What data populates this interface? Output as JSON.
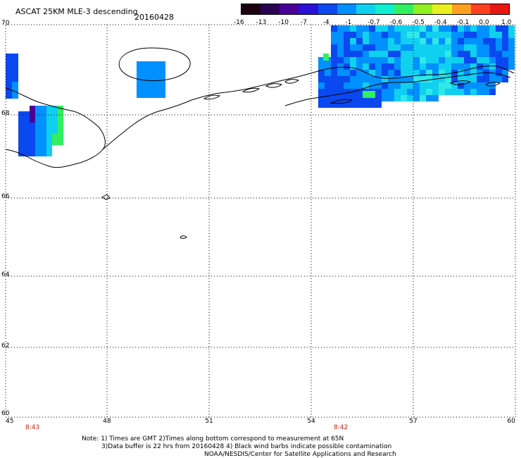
{
  "header": {
    "title": "ASCAT 25KM MLE-3 descending",
    "date": "20160428"
  },
  "colorbar": {
    "labels": [
      "-16",
      "-13",
      "-10",
      "-7",
      "-4",
      "-1",
      "-0.7",
      "-0.6",
      "-0.5",
      "-0.4",
      "-0.1",
      "0.0",
      "1.0"
    ],
    "colors": [
      "#1a0010",
      "#2a0052",
      "#4a0098",
      "#2a10d8",
      "#0a48f0",
      "#0090ff",
      "#10d0f0",
      "#10f0d0",
      "#30f060",
      "#90f020",
      "#e8f020",
      "#ffa020",
      "#ff4020",
      "#e81810"
    ]
  },
  "axes": {
    "lon_labels": [
      "45",
      "48",
      "51",
      "54",
      "57",
      "60"
    ],
    "lat_labels": [
      "70",
      "68",
      "66",
      "64",
      "62",
      "60"
    ]
  },
  "times": [
    "8:43",
    "8:42"
  ],
  "notes": {
    "line1": "Note: 1) Times are GMT 2)Times along bottom correspond to measurement at 65N",
    "line2": "3)Data buffer is 22 hrs from 20160428 4) Black wind barbs indicate possible contamination",
    "line3": "NOAA/NESDIS/Center for Satellite Applications and Research"
  },
  "palette": {
    "c_dark": "#0a48f0",
    "c_mid": "#0090ff",
    "c_light": "#10d0f0",
    "c_cyan": "#30e8e8",
    "c_green": "#30f060",
    "c_purple": "#4a0098"
  }
}
